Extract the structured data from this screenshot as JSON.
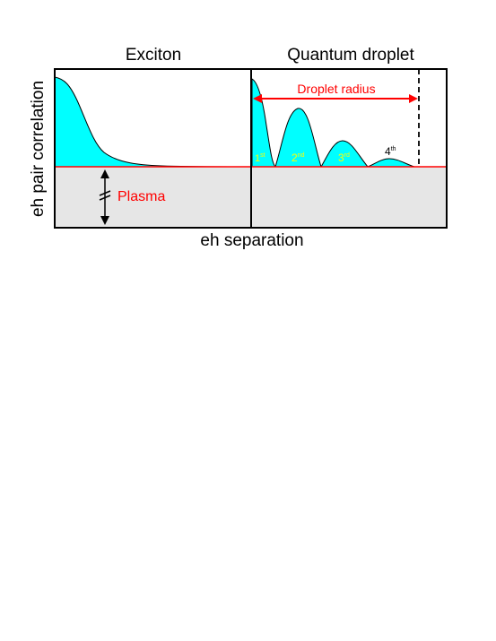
{
  "panels": {
    "left_title": "Exciton",
    "right_title": "Quantum droplet"
  },
  "axes": {
    "ylabel": "eh pair correlation",
    "xlabel": "eh separation"
  },
  "annotations": {
    "plasma": "Plasma",
    "droplet_radius": "Droplet radius",
    "peaks": [
      {
        "num": "1",
        "sup": "st"
      },
      {
        "num": "2",
        "sup": "nd"
      },
      {
        "num": "3",
        "sup": "rd"
      },
      {
        "num": "4",
        "sup": "th"
      }
    ]
  },
  "colors": {
    "fill": "#00ffff",
    "plasma_region": "#e6e6e6",
    "baseline": "#ff0000",
    "accent_text": "#ff0000",
    "peak_label": "#ffff00",
    "ink": "#000000"
  }
}
